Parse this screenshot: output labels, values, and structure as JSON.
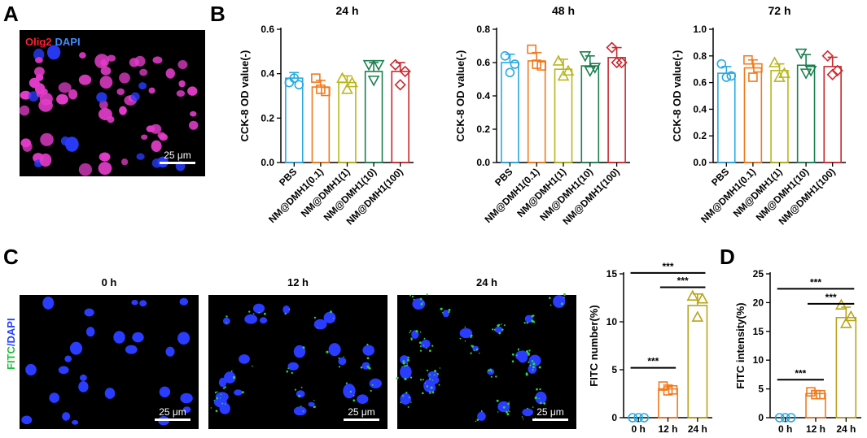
{
  "colors": {
    "PBS": "#29a9e0",
    "NM@DMH1(0.1)": "#f07a1e",
    "NM@DMH1(1)": "#b9b61b",
    "NM@DMH1(10)": "#1b7f4f",
    "NM@DMH1(100)": "#c9282e",
    "0 h": "#29a9e0",
    "12 h": "#f07a1e",
    "24 h": "#b9a41b",
    "micro_nuclei": "#2a3cff",
    "micro_olig": "#e23cc8",
    "micro_fitc": "#2bd24c"
  },
  "panels": {
    "A": {
      "letter": "A",
      "label_red": "Olig2",
      "label_blue": "DAPI",
      "scalebar": "25 μm"
    },
    "B": {
      "letter": "B"
    },
    "C": {
      "letter": "C",
      "side_label_green": "FITC",
      "side_label_blue": "/DAPI",
      "images": [
        {
          "title": "0 h",
          "scalebar": "25 μm"
        },
        {
          "title": "12 h",
          "scalebar": "25 μm"
        },
        {
          "title": "24 h",
          "scalebar": "25 μm"
        }
      ]
    },
    "D": {
      "letter": "D"
    }
  },
  "chart_data": [
    {
      "id": "b24",
      "type": "bar",
      "title": "24 h",
      "ylabel": "CCK-8 OD value(-)",
      "xlabel": "",
      "ylim": [
        0,
        0.6
      ],
      "yticks": [
        "0.0",
        "0.2",
        "0.4",
        "0.6"
      ],
      "categories": [
        "PBS",
        "NM@DMH1(0.1)",
        "NM@DMH1(1)",
        "NM@DMH1(10)",
        "NM@DMH1(100)"
      ],
      "markers": [
        "circle",
        "square",
        "triangle",
        "triangle-down",
        "diamond"
      ],
      "values": [
        0.38,
        0.34,
        0.36,
        0.41,
        0.41
      ],
      "errors": [
        0.025,
        0.03,
        0.03,
        0.04,
        0.04
      ],
      "points": [
        [
          0.36,
          0.35,
          0.38
        ],
        [
          0.38,
          0.32,
          0.33
        ],
        [
          0.38,
          0.36,
          0.33
        ],
        [
          0.44,
          0.44,
          0.37
        ],
        [
          0.44,
          0.41,
          0.35
        ]
      ]
    },
    {
      "id": "b48",
      "type": "bar",
      "title": "48 h",
      "ylabel": "CCK-8 OD value(-)",
      "xlabel": "",
      "ylim": [
        0,
        0.8
      ],
      "yticks": [
        "0.0",
        "0.2",
        "0.4",
        "0.6",
        "0.8"
      ],
      "categories": [
        "PBS",
        "NM@DMH1(0.1)",
        "NM@DMH1(1)",
        "NM@DMH1(10)",
        "NM@DMH1(100)"
      ],
      "markers": [
        "circle",
        "square",
        "triangle",
        "triangle-down",
        "diamond"
      ],
      "values": [
        0.6,
        0.61,
        0.56,
        0.58,
        0.63
      ],
      "errors": [
        0.05,
        0.05,
        0.06,
        0.06,
        0.06
      ],
      "points": [
        [
          0.64,
          0.59,
          0.54
        ],
        [
          0.68,
          0.58,
          0.59
        ],
        [
          0.61,
          0.55,
          0.52
        ],
        [
          0.64,
          0.57,
          0.55
        ],
        [
          0.69,
          0.6,
          0.6
        ]
      ]
    },
    {
      "id": "b72",
      "type": "bar",
      "title": "72 h",
      "ylabel": "CCK-8 OD value(-)",
      "xlabel": "",
      "ylim": [
        0,
        1.0
      ],
      "yticks": [
        "0.0",
        "0.2",
        "0.4",
        "0.6",
        "0.8",
        "1.0"
      ],
      "categories": [
        "PBS",
        "NM@DMH1(0.1)",
        "NM@DMH1(1)",
        "NM@DMH1(10)",
        "NM@DMH1(100)"
      ],
      "markers": [
        "circle",
        "square",
        "triangle",
        "triangle-down",
        "diamond"
      ],
      "values": [
        0.67,
        0.71,
        0.69,
        0.73,
        0.72
      ],
      "errors": [
        0.05,
        0.06,
        0.05,
        0.08,
        0.07
      ],
      "points": [
        [
          0.74,
          0.65,
          0.64
        ],
        [
          0.77,
          0.71,
          0.64
        ],
        [
          0.75,
          0.67,
          0.64
        ],
        [
          0.82,
          0.69,
          0.67
        ],
        [
          0.8,
          0.69,
          0.66
        ]
      ]
    },
    {
      "id": "fitc_number",
      "type": "bar",
      "title": "",
      "ylabel": "FITC number(%)",
      "xlabel": "",
      "ylim": [
        0,
        15
      ],
      "yticks": [
        "0",
        "5",
        "10",
        "15"
      ],
      "categories": [
        "0 h",
        "12 h",
        "24 h"
      ],
      "markers": [
        "circle",
        "square",
        "triangle"
      ],
      "values": [
        0,
        3.0,
        11.7
      ],
      "errors": [
        0,
        0.4,
        1.2
      ],
      "points": [
        [
          0,
          0,
          0
        ],
        [
          3.3,
          2.9,
          2.8
        ],
        [
          12.7,
          12.4,
          10.5
        ]
      ],
      "significance": [
        {
          "from": 1,
          "to": 2,
          "label": "***",
          "y": 13.6
        },
        {
          "from": 0,
          "to": 2,
          "label": "***",
          "y": 15.1
        },
        {
          "from": 0,
          "to": 1,
          "label": "***",
          "y": 5.2
        }
      ]
    },
    {
      "id": "fitc_intensity",
      "type": "bar",
      "title": "",
      "ylabel": "FITC intensity(%)",
      "xlabel": "",
      "ylim": [
        0,
        25
      ],
      "yticks": [
        "0",
        "5",
        "10",
        "15",
        "20",
        "25"
      ],
      "categories": [
        "0 h",
        "12 h",
        "24 h"
      ],
      "markers": [
        "circle",
        "square",
        "triangle"
      ],
      "values": [
        0,
        4.2,
        17.4
      ],
      "errors": [
        0,
        0.5,
        1.8
      ],
      "points": [
        [
          0,
          0,
          0
        ],
        [
          4.5,
          4.0,
          4.0
        ],
        [
          19.6,
          17.6,
          16.4
        ]
      ],
      "significance": [
        {
          "from": 1,
          "to": 2,
          "label": "***",
          "y": 19.8
        },
        {
          "from": 0,
          "to": 2,
          "label": "***",
          "y": 22.4
        },
        {
          "from": 0,
          "to": 1,
          "label": "***",
          "y": 6.6
        }
      ]
    }
  ]
}
